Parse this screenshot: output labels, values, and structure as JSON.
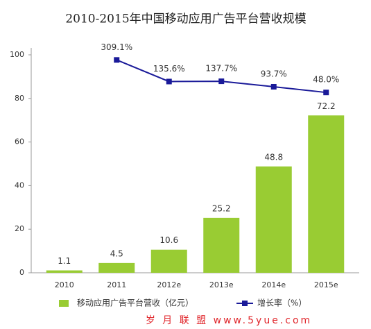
{
  "chart_data": {
    "type": "bar",
    "title": "2010-2015年中国移动应用广告平台营收规模",
    "categories": [
      "2010",
      "2011",
      "2012e",
      "2013e",
      "2014e",
      "2015e"
    ],
    "ylim": [
      0,
      100
    ],
    "yticks": [
      0,
      20,
      40,
      60,
      80,
      100
    ],
    "y2lim": [
      -1400,
      350
    ],
    "series": [
      {
        "name": "移动应用广告平台营收（亿元）",
        "type": "bar",
        "color": "#99cc33",
        "values": [
          1.1,
          4.5,
          10.6,
          25.2,
          48.8,
          72.2
        ]
      },
      {
        "name": "增长率（%）",
        "type": "line",
        "axis": "y2",
        "color": "#1a1a99",
        "values": [
          null,
          309.1,
          135.6,
          137.7,
          93.7,
          48.0
        ],
        "value_labels": [
          null,
          "309.1%",
          "135.6%",
          "137.7%",
          "93.7%",
          "48.0%"
        ]
      }
    ],
    "legend": "bottom",
    "watermark": "岁 月 联 盟 www.5yue.com"
  }
}
